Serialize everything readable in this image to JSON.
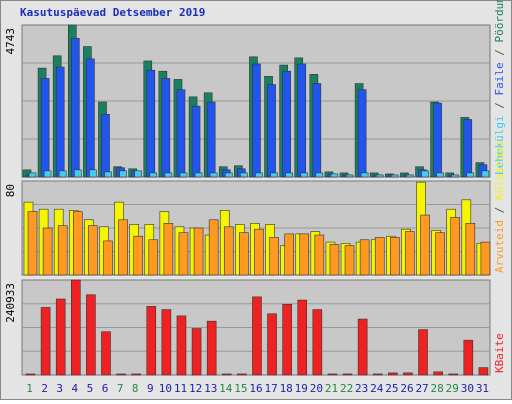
{
  "title": "Kasutuspäevad Detsember 2019",
  "legend_separator": " / ",
  "x_axis": {
    "categories": [
      "1",
      "2",
      "3",
      "4",
      "5",
      "6",
      "7",
      "8",
      "9",
      "10",
      "11",
      "12",
      "13",
      "14",
      "15",
      "16",
      "17",
      "18",
      "19",
      "20",
      "21",
      "22",
      "23",
      "24",
      "25",
      "26",
      "27",
      "28",
      "29",
      "30",
      "31"
    ],
    "weekend": [
      true,
      false,
      false,
      false,
      false,
      false,
      true,
      true,
      false,
      false,
      false,
      false,
      false,
      true,
      true,
      false,
      false,
      false,
      false,
      false,
      true,
      true,
      false,
      false,
      false,
      false,
      false,
      true,
      true,
      false,
      false
    ],
    "color": "#2222aa",
    "weekend_color": "#228844"
  },
  "chart_data": [
    {
      "type": "bar",
      "ylim": [
        0,
        4743
      ],
      "yticks": [
        4743
      ],
      "grid": true,
      "series": [
        {
          "name": "Pöördumisi",
          "color": "#1a8060",
          "values": [
            224,
            3397,
            3782,
            4743,
            4070,
            2339,
            320,
            256,
            3621,
            3301,
            3044,
            2500,
            2628,
            320,
            352,
            3750,
            3141,
            3493,
            3718,
            3205,
            160,
            128,
            2916,
            128,
            96,
            128,
            320,
            2339,
            128,
            1859,
            449
          ]
        },
        {
          "name": "Faile",
          "color": "#2255ee",
          "values": [
            64,
            3076,
            3429,
            4326,
            3685,
            1955,
            288,
            192,
            3333,
            3076,
            2724,
            2211,
            2339,
            224,
            256,
            3525,
            2884,
            3301,
            3525,
            2916,
            96,
            64,
            2724,
            64,
            64,
            64,
            224,
            2307,
            64,
            1795,
            384
          ]
        },
        {
          "name": "Lehekülgi",
          "color": "#44ccee",
          "values": [
            128,
            192,
            192,
            224,
            224,
            160,
            192,
            192,
            128,
            128,
            128,
            128,
            128,
            128,
            128,
            128,
            128,
            128,
            128,
            128,
            96,
            64,
            128,
            64,
            64,
            64,
            192,
            128,
            64,
            128,
            192
          ]
        }
      ]
    },
    {
      "type": "bar",
      "ylim": [
        0,
        80
      ],
      "yticks": [
        80
      ],
      "grid": true,
      "series": [
        {
          "name": "Külastusi",
          "color": "#f5f500",
          "values": [
            62,
            56,
            56,
            55,
            47,
            41,
            62,
            43,
            43,
            54,
            41,
            40,
            34,
            55,
            43,
            44,
            43,
            25,
            35,
            37,
            28,
            27,
            28,
            30,
            33,
            39,
            79,
            38,
            56,
            64,
            27
          ]
        },
        {
          "name": "Arvuteid",
          "color": "#ff9922",
          "values": [
            54,
            40,
            42,
            54,
            42,
            29,
            47,
            33,
            30,
            44,
            36,
            40,
            47,
            41,
            36,
            39,
            32,
            35,
            35,
            34,
            26,
            25,
            30,
            32,
            32,
            37,
            51,
            36,
            49,
            44,
            28
          ]
        }
      ]
    },
    {
      "type": "bar",
      "ylim": [
        0,
        240933
      ],
      "yticks": [
        240933
      ],
      "grid": true,
      "series": [
        {
          "name": "KBaite",
          "color": "#ee2222",
          "values": [
            2677,
            171330,
            192742,
            240933,
            203451,
            109786,
            2677,
            2677,
            174008,
            165975,
            149913,
            117817,
            136529,
            2677,
            2677,
            198100,
            155270,
            179360,
            190060,
            165975,
            2677,
            2677,
            141900,
            2677,
            5350,
            5350,
            115110,
            8030,
            2677,
            88340,
            18740
          ]
        }
      ]
    }
  ]
}
